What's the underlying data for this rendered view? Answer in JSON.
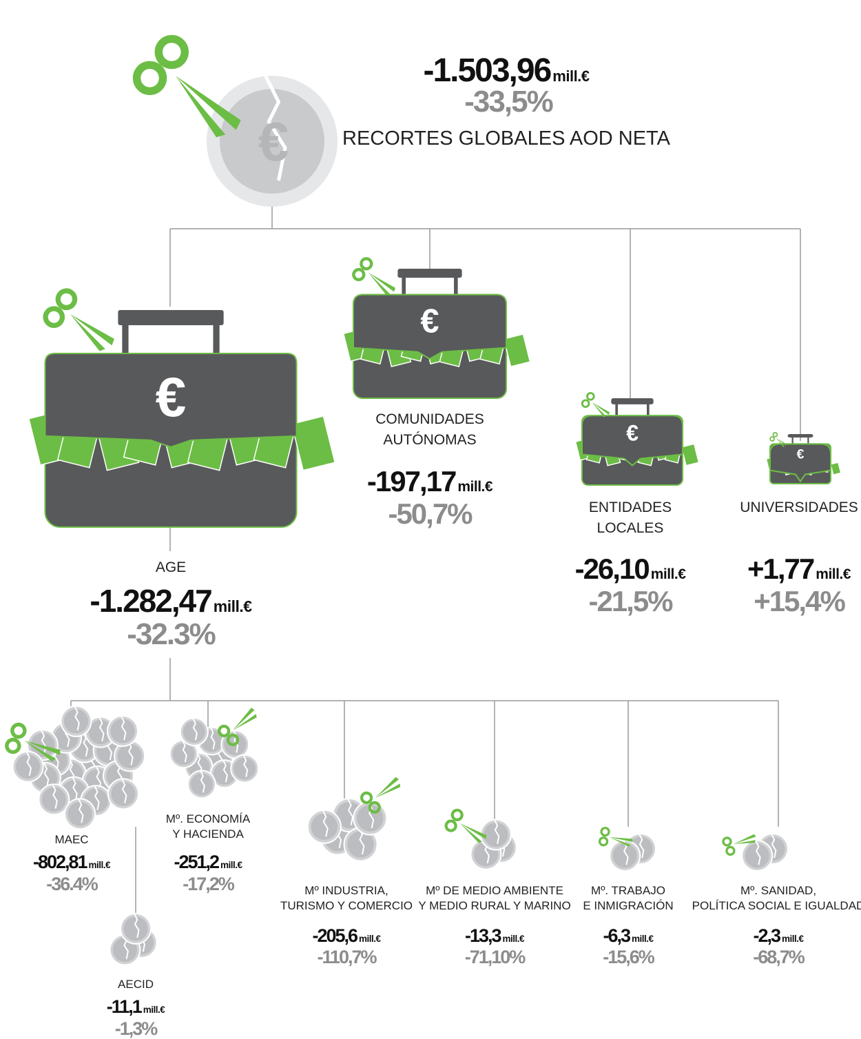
{
  "unit": "mill.€",
  "icon_symbol": "€",
  "root": {
    "amount": "-1.503,96",
    "percent": "-33,5%",
    "label": "RECORTES GLOBALES AOD NETA"
  },
  "entities": [
    {
      "label_lines": [
        "AGE"
      ],
      "amount": "-1.282,47",
      "percent": "-32.3%"
    },
    {
      "label_lines": [
        "COMUNIDADES",
        "AUTÓNOMAS"
      ],
      "amount": "-197,17",
      "percent": "-50,7%"
    },
    {
      "label_lines": [
        "ENTIDADES",
        "LOCALES"
      ],
      "amount": "-26,10",
      "percent": "-21,5%"
    },
    {
      "label_lines": [
        "UNIVERSIDADES"
      ],
      "amount": "+1,77",
      "percent": "+15,4%"
    }
  ],
  "ministries": [
    {
      "label_lines": [
        "MAEC"
      ],
      "amount": "-802,81",
      "percent": "-36.4%"
    },
    {
      "label_lines": [
        "Mº. ECONOMÍA",
        "Y HACIENDA"
      ],
      "amount": "-251,2",
      "percent": "-17,2%"
    },
    {
      "label_lines": [
        "Mº INDUSTRIA,",
        "TURISMO Y COMERCIO"
      ],
      "amount": "-205,6",
      "percent": "-110,7%"
    },
    {
      "label_lines": [
        "Mº DE MEDIO AMBIENTE",
        "Y MEDIO RURAL Y MARINO"
      ],
      "amount": "-13,3",
      "percent": "-71,10%"
    },
    {
      "label_lines": [
        "Mº. TRABAJO",
        "E INMIGRACIÓN"
      ],
      "amount": "-6,3",
      "percent": "-15,6%"
    },
    {
      "label_lines": [
        "Mº. SANIDAD,",
        "POLÍTICA SOCIAL E IGUALDAD"
      ],
      "amount": "-2,3",
      "percent": "-68,7%"
    },
    {
      "label_lines": [
        "AECID"
      ],
      "amount": "-11,1",
      "percent": "-1,3%"
    }
  ]
}
